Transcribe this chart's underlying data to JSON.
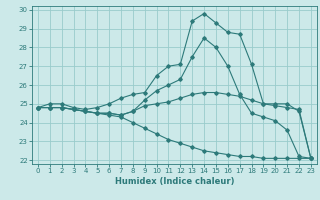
{
  "xlabel": "Humidex (Indice chaleur)",
  "xlim": [
    -0.5,
    23.5
  ],
  "ylim": [
    21.8,
    30.2
  ],
  "yticks": [
    22,
    23,
    24,
    25,
    26,
    27,
    28,
    29,
    30
  ],
  "xticks": [
    0,
    1,
    2,
    3,
    4,
    5,
    6,
    7,
    8,
    9,
    10,
    11,
    12,
    13,
    14,
    15,
    16,
    17,
    18,
    19,
    20,
    21,
    22,
    23
  ],
  "bg_color": "#cce9e9",
  "grid_color": "#99cccc",
  "line_color": "#2d7a7a",
  "lines": [
    [
      24.8,
      25.0,
      25.0,
      24.8,
      24.7,
      24.8,
      25.0,
      25.3,
      25.5,
      25.6,
      26.5,
      27.0,
      27.1,
      29.4,
      29.8,
      29.3,
      28.8,
      28.7,
      27.1,
      25.0,
      25.0,
      25.0,
      24.6,
      22.1
    ],
    [
      24.8,
      24.8,
      24.8,
      24.7,
      24.6,
      24.5,
      24.5,
      24.4,
      24.6,
      25.2,
      25.7,
      26.0,
      26.3,
      27.5,
      28.5,
      28.0,
      27.0,
      25.5,
      24.5,
      24.3,
      24.1,
      23.6,
      22.2,
      22.1
    ],
    [
      24.8,
      24.8,
      24.8,
      24.7,
      24.6,
      24.5,
      24.5,
      24.4,
      24.6,
      24.9,
      25.0,
      25.1,
      25.3,
      25.5,
      25.6,
      25.6,
      25.5,
      25.4,
      25.2,
      25.0,
      24.9,
      24.8,
      24.7,
      22.1
    ],
    [
      24.8,
      24.8,
      24.8,
      24.7,
      24.6,
      24.5,
      24.4,
      24.3,
      24.0,
      23.7,
      23.4,
      23.1,
      22.9,
      22.7,
      22.5,
      22.4,
      22.3,
      22.2,
      22.2,
      22.1,
      22.1,
      22.1,
      22.1,
      22.1
    ]
  ]
}
